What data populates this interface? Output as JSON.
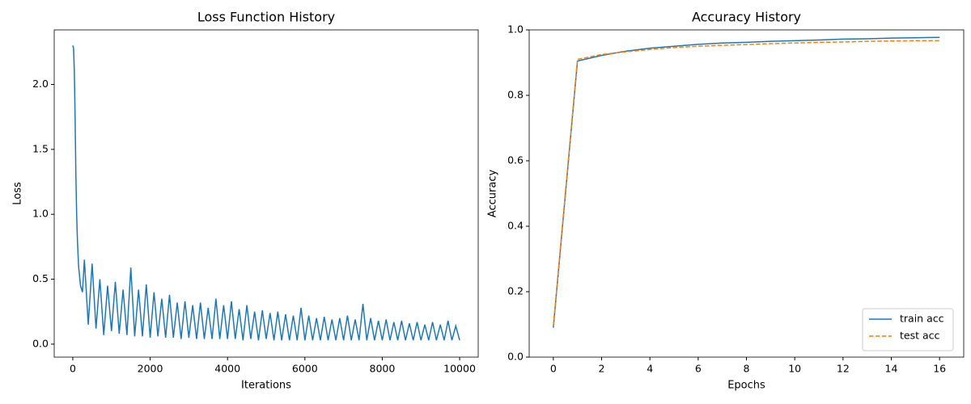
{
  "chart_data": [
    {
      "type": "line",
      "title": "Loss Function History",
      "x_label": "Iterations",
      "y_label": "Loss",
      "color": "#1f77b4",
      "x": [
        0,
        20,
        40,
        60,
        80,
        100,
        120,
        150,
        200,
        250,
        300,
        400,
        500,
        600,
        700,
        800,
        900,
        1000,
        1100,
        1200,
        1300,
        1400,
        1500,
        1600,
        1700,
        1800,
        1900,
        2000,
        2100,
        2200,
        2300,
        2400,
        2500,
        2600,
        2700,
        2800,
        2900,
        3000,
        3100,
        3200,
        3300,
        3400,
        3500,
        3600,
        3700,
        3800,
        3900,
        4000,
        4100,
        4200,
        4300,
        4400,
        4500,
        4600,
        4700,
        4800,
        4900,
        5000,
        5100,
        5200,
        5300,
        5400,
        5500,
        5600,
        5700,
        5800,
        5900,
        6000,
        6100,
        6200,
        6300,
        6400,
        6500,
        6600,
        6700,
        6800,
        6900,
        7000,
        7100,
        7200,
        7300,
        7400,
        7500,
        7600,
        7700,
        7800,
        7900,
        8000,
        8100,
        8200,
        8300,
        8400,
        8500,
        8600,
        8700,
        8800,
        8900,
        9000,
        9100,
        9200,
        9300,
        9400,
        9500,
        9600,
        9700,
        9800,
        9900,
        10000
      ],
      "values": [
        2.3,
        2.28,
        2.1,
        1.75,
        1.3,
        1.0,
        0.8,
        0.6,
        0.45,
        0.4,
        0.65,
        0.15,
        0.62,
        0.12,
        0.5,
        0.07,
        0.45,
        0.1,
        0.48,
        0.08,
        0.42,
        0.07,
        0.59,
        0.06,
        0.42,
        0.06,
        0.46,
        0.05,
        0.4,
        0.06,
        0.35,
        0.05,
        0.38,
        0.05,
        0.32,
        0.04,
        0.33,
        0.05,
        0.3,
        0.04,
        0.32,
        0.04,
        0.28,
        0.04,
        0.35,
        0.04,
        0.3,
        0.04,
        0.33,
        0.04,
        0.27,
        0.03,
        0.3,
        0.04,
        0.25,
        0.03,
        0.26,
        0.04,
        0.24,
        0.03,
        0.25,
        0.03,
        0.23,
        0.03,
        0.22,
        0.03,
        0.28,
        0.03,
        0.22,
        0.03,
        0.2,
        0.03,
        0.21,
        0.03,
        0.19,
        0.03,
        0.2,
        0.03,
        0.22,
        0.03,
        0.19,
        0.03,
        0.31,
        0.03,
        0.2,
        0.03,
        0.18,
        0.03,
        0.19,
        0.03,
        0.17,
        0.03,
        0.18,
        0.03,
        0.16,
        0.03,
        0.17,
        0.03,
        0.15,
        0.03,
        0.17,
        0.03,
        0.15,
        0.03,
        0.18,
        0.03,
        0.14,
        0.03
      ],
      "xlim": [
        -480,
        10480
      ],
      "xticks": [
        0,
        2000,
        4000,
        6000,
        8000,
        10000
      ],
      "ylim": [
        -0.1,
        2.42
      ],
      "yticks": [
        {
          "value": 0,
          "label": "0.0"
        },
        {
          "value": 0.5,
          "label": "0.5"
        },
        {
          "value": 1,
          "label": "1.0"
        },
        {
          "value": 1.5,
          "label": "1.5"
        },
        {
          "value": 2,
          "label": "2.0"
        }
      ]
    },
    {
      "type": "line",
      "title": "Accuracy History",
      "x_label": "Epochs",
      "y_label": "Accuracy",
      "x": [
        0,
        1,
        2,
        3,
        4,
        5,
        6,
        7,
        8,
        9,
        10,
        11,
        12,
        13,
        14,
        15,
        16
      ],
      "series": [
        {
          "name": "train acc",
          "color": "#1f77b4",
          "linestyle": "solid",
          "values": [
            0.09,
            0.905,
            0.922,
            0.935,
            0.944,
            0.95,
            0.956,
            0.96,
            0.962,
            0.965,
            0.967,
            0.969,
            0.972,
            0.973,
            0.975,
            0.976,
            0.977
          ]
        },
        {
          "name": "test acc",
          "color": "#ff7f0e",
          "linestyle": "dashed",
          "values": [
            0.095,
            0.91,
            0.925,
            0.933,
            0.94,
            0.946,
            0.95,
            0.953,
            0.955,
            0.958,
            0.96,
            0.962,
            0.963,
            0.965,
            0.966,
            0.967,
            0.967
          ]
        }
      ],
      "xlim": [
        -1,
        17
      ],
      "xticks": [
        0,
        2,
        4,
        6,
        8,
        10,
        12,
        14,
        16
      ],
      "ylim": [
        0,
        1
      ],
      "yticks": [
        {
          "value": 0,
          "label": "0.0"
        },
        {
          "value": 0.2,
          "label": "0.2"
        },
        {
          "value": 0.4,
          "label": "0.4"
        },
        {
          "value": 0.6,
          "label": "0.6"
        },
        {
          "value": 0.8,
          "label": "0.8"
        },
        {
          "value": 1,
          "label": "1.0"
        }
      ],
      "legend": "lower right"
    }
  ]
}
